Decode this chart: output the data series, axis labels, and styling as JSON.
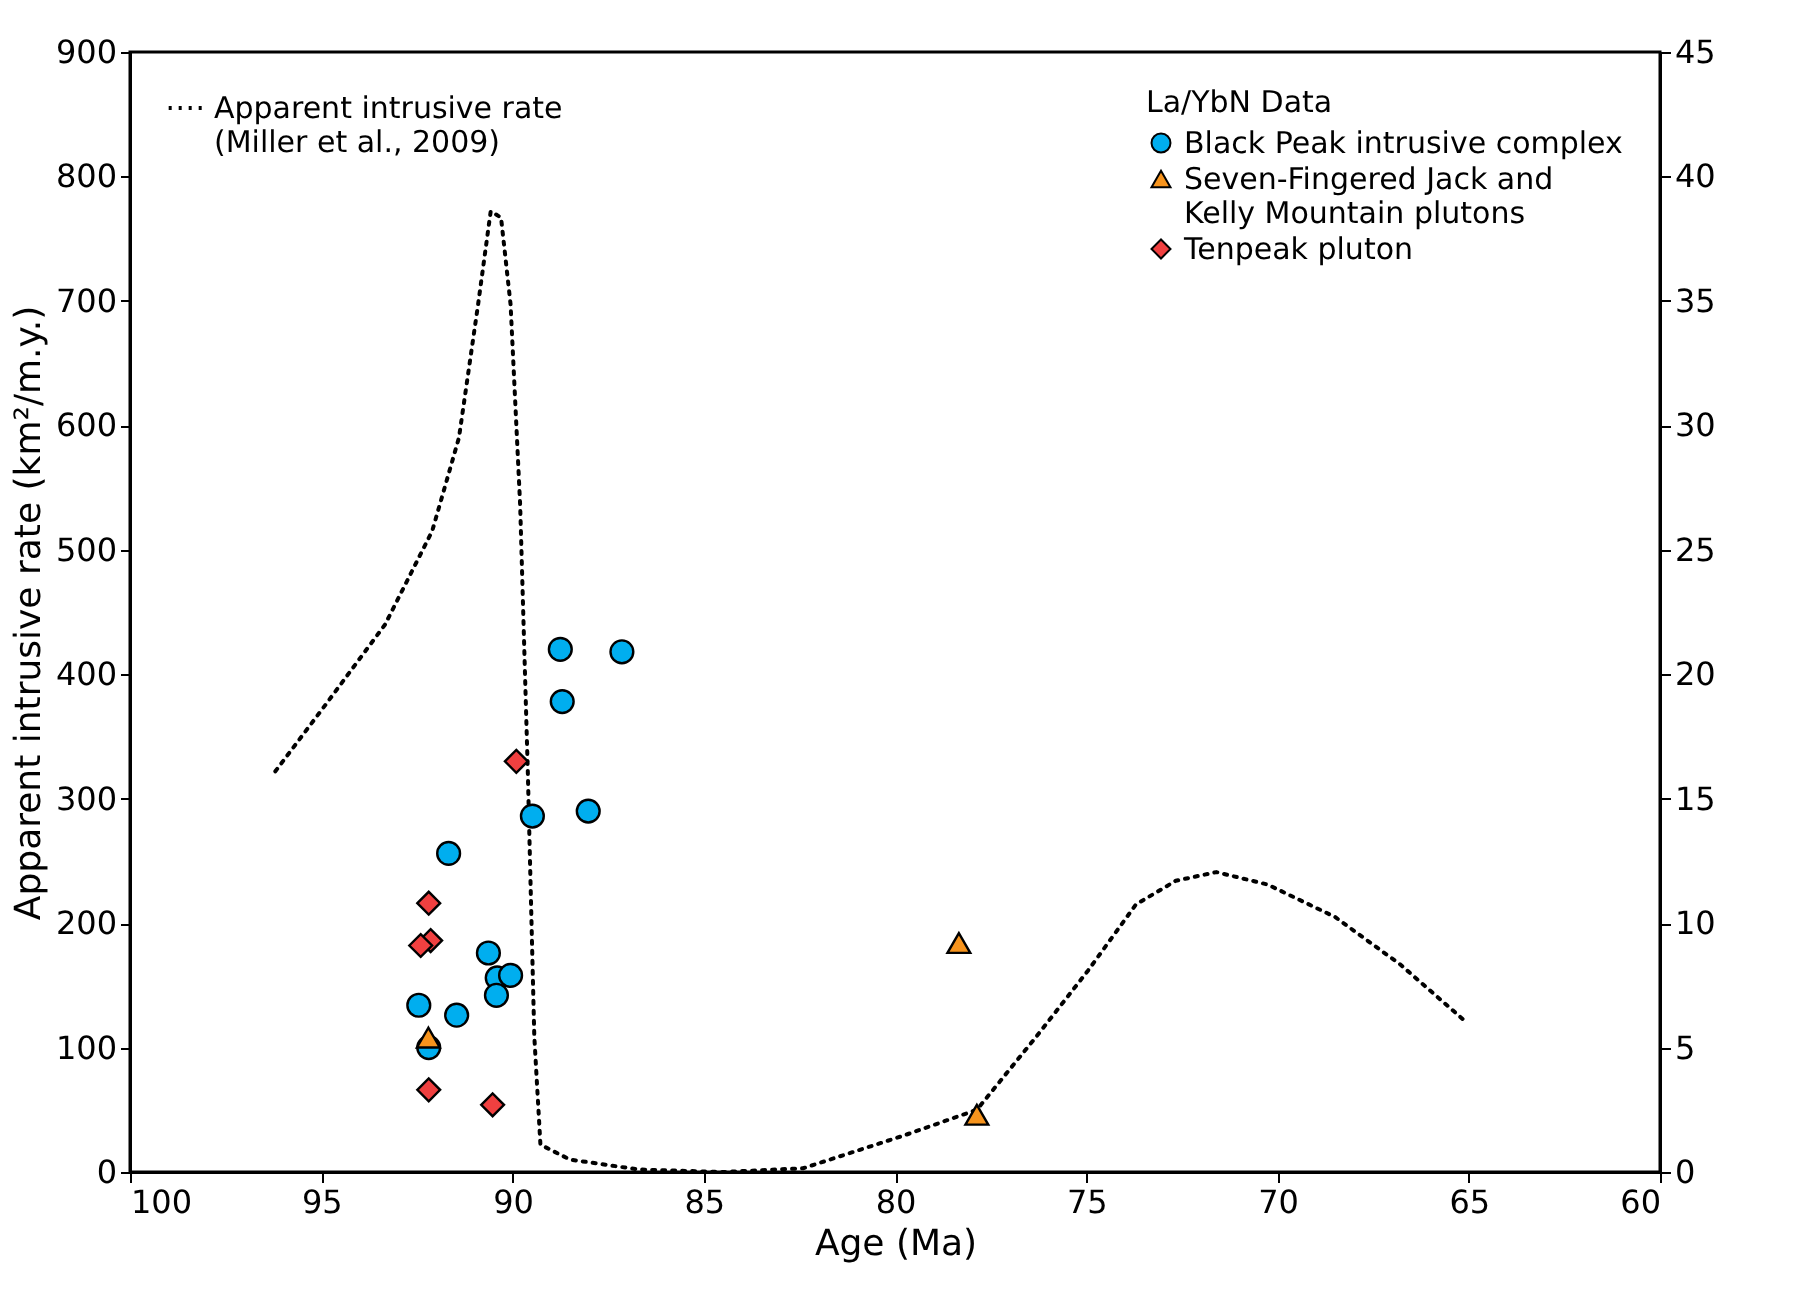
{
  "chart_data": {
    "type": "scatter",
    "xlabel": "Age (Ma)",
    "ylabel": "Apparent intrusive rate (km²/m.y.)",
    "legend_title": "La/YbN Data",
    "xlim": [
      100,
      60
    ],
    "xticks": [
      100,
      95,
      90,
      85,
      80,
      75,
      70,
      65,
      60
    ],
    "ylim": [
      0,
      900
    ],
    "yticks": [
      0,
      100,
      200,
      300,
      400,
      500,
      600,
      700,
      800,
      900
    ],
    "y2lim": [
      0,
      45
    ],
    "y2ticks": [
      0,
      5,
      10,
      15,
      20,
      25,
      30,
      35,
      40,
      45
    ],
    "grid": false,
    "legend": "top right",
    "series": [
      {
        "name": "Apparent intrusive rate\n(Miller et al., 2009)",
        "type": "line",
        "color": "#000000",
        "line_style": "dotted",
        "marker": "none",
        "x": [
          96.2,
          94.9,
          93.33,
          92.1,
          91.4,
          90.9,
          90.57,
          90.3,
          90.05,
          89.8,
          89.6,
          89.43,
          89.27,
          88.5,
          86.7,
          84.5,
          82.4,
          79.8,
          77.86,
          76.3,
          74.95,
          73.7,
          72.66,
          71.6,
          70.26,
          68.5,
          66.8,
          65.05
        ],
        "values": [
          322,
          375,
          440,
          515,
          590,
          697,
          772,
          767,
          697,
          536,
          322,
          109,
          22,
          10,
          2,
          0,
          3,
          29,
          50,
          109,
          162,
          215,
          234,
          241,
          231,
          205,
          167,
          120
        ]
      },
      {
        "name": "Black Peak intrusive complex",
        "axis": "y2",
        "color": "#00aeef",
        "marker": "circle",
        "x": [
          88.75,
          87.14,
          88.7,
          89.48,
          88.02,
          91.67,
          90.63,
          90.4,
          90.05,
          90.42,
          92.45,
          91.46,
          92.19
        ],
        "values": [
          21.0,
          20.9,
          18.9,
          14.3,
          14.5,
          12.8,
          8.8,
          7.8,
          7.9,
          7.1,
          6.7,
          6.3,
          5.0
        ]
      },
      {
        "name": "Seven-Fingered Jack and\nKelly Mountain plutons",
        "axis": "y2",
        "color": "#f7941d",
        "marker": "triangle",
        "x": [
          92.2,
          78.33,
          77.86
        ],
        "values": [
          5.4,
          9.2,
          2.3
        ]
      },
      {
        "name": "Tenpeak pluton",
        "axis": "y2",
        "color": "#f04040",
        "marker": "diamond",
        "x": [
          89.9,
          92.19,
          92.14,
          92.4,
          92.19,
          90.52
        ],
        "values": [
          16.5,
          10.8,
          9.3,
          9.1,
          3.3,
          2.7
        ]
      }
    ]
  }
}
